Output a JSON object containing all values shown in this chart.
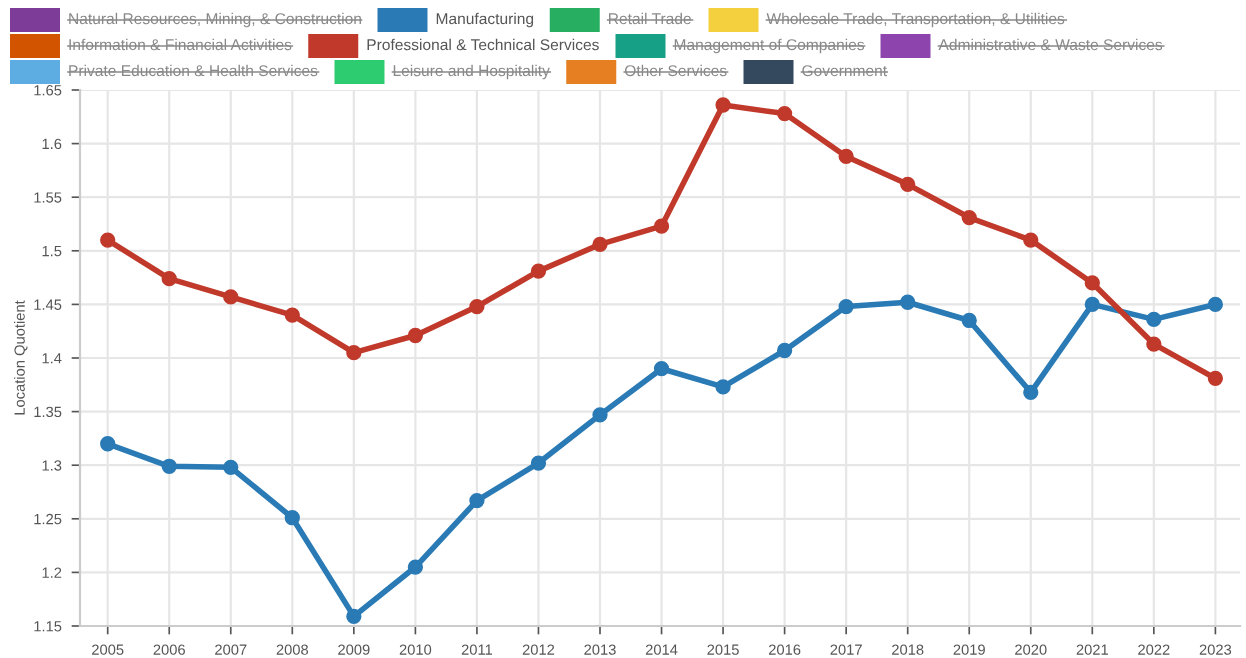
{
  "chart_data": {
    "type": "line",
    "ylabel": "Location Quotient",
    "categories": [
      "2005",
      "2006",
      "2007",
      "2008",
      "2009",
      "2010",
      "2011",
      "2012",
      "2013",
      "2014",
      "2015",
      "2016",
      "2017",
      "2018",
      "2019",
      "2020",
      "2021",
      "2022",
      "2023"
    ],
    "series": [
      {
        "name": "Natural Resources, Mining, & Construction",
        "color": "#7d3c98",
        "values": [
          null,
          null,
          null,
          null,
          null,
          null,
          null,
          null,
          null,
          null,
          null,
          null,
          null,
          null,
          null,
          null,
          null,
          null,
          null
        ]
      },
      {
        "name": "Manufacturing",
        "color": "#2a7ab5",
        "values": [
          1.32,
          1.299,
          1.298,
          1.251,
          1.159,
          1.205,
          1.267,
          1.302,
          1.347,
          1.39,
          1.373,
          1.407,
          1.448,
          1.452,
          1.435,
          1.368,
          1.45,
          1.436,
          1.45
        ]
      },
      {
        "name": "Retail Trade",
        "color": "#27ae60",
        "values": [
          null,
          null,
          null,
          null,
          null,
          null,
          null,
          null,
          null,
          null,
          null,
          null,
          null,
          null,
          null,
          null,
          null,
          null,
          null
        ]
      },
      {
        "name": "Wholesale Trade, Transportation, & Utilities",
        "color": "#f4d03f",
        "values": [
          null,
          null,
          null,
          null,
          null,
          null,
          null,
          null,
          null,
          null,
          null,
          null,
          null,
          null,
          null,
          null,
          null,
          null,
          null
        ]
      },
      {
        "name": "Information & Financial Activities",
        "color": "#d35400",
        "values": [
          null,
          null,
          null,
          null,
          null,
          null,
          null,
          null,
          null,
          null,
          null,
          null,
          null,
          null,
          null,
          null,
          null,
          null,
          null
        ]
      },
      {
        "name": "Professional & Technical Services",
        "color": "#c0392b",
        "values": [
          1.51,
          1.474,
          1.457,
          1.44,
          1.405,
          1.421,
          1.448,
          1.481,
          1.506,
          1.523,
          1.636,
          1.628,
          1.588,
          1.562,
          1.531,
          1.51,
          1.47,
          1.413,
          1.381
        ]
      },
      {
        "name": "Management of Companies",
        "color": "#16a085",
        "values": [
          null,
          null,
          null,
          null,
          null,
          null,
          null,
          null,
          null,
          null,
          null,
          null,
          null,
          null,
          null,
          null,
          null,
          null,
          null
        ]
      },
      {
        "name": "Administrative & Waste Services",
        "color": "#8e44ad",
        "values": [
          null,
          null,
          null,
          null,
          null,
          null,
          null,
          null,
          null,
          null,
          null,
          null,
          null,
          null,
          null,
          null,
          null,
          null,
          null
        ]
      },
      {
        "name": "Private Education & Health Services",
        "color": "#5dade2",
        "values": [
          null,
          null,
          null,
          null,
          null,
          null,
          null,
          null,
          null,
          null,
          null,
          null,
          null,
          null,
          null,
          null,
          null,
          null,
          null
        ]
      },
      {
        "name": "Leisure and Hospitality",
        "color": "#2ecc71",
        "values": [
          null,
          null,
          null,
          null,
          null,
          null,
          null,
          null,
          null,
          null,
          null,
          null,
          null,
          null,
          null,
          null,
          null,
          null,
          null
        ]
      },
      {
        "name": "Other Services",
        "color": "#e67e22",
        "values": [
          null,
          null,
          null,
          null,
          null,
          null,
          null,
          null,
          null,
          null,
          null,
          null,
          null,
          null,
          null,
          null,
          null,
          null,
          null
        ]
      },
      {
        "name": "Government",
        "color": "#34495e",
        "values": [
          null,
          null,
          null,
          null,
          null,
          null,
          null,
          null,
          null,
          null,
          null,
          null,
          null,
          null,
          null,
          null,
          null,
          null,
          null
        ]
      }
    ],
    "ylim": [
      1.15,
      1.65
    ],
    "yticks": [
      1.15,
      1.2,
      1.25,
      1.3,
      1.35,
      1.4,
      1.45,
      1.5,
      1.55,
      1.6,
      1.65
    ],
    "grid": true,
    "legend": "top",
    "marker": "circle",
    "line_style": "solid"
  }
}
